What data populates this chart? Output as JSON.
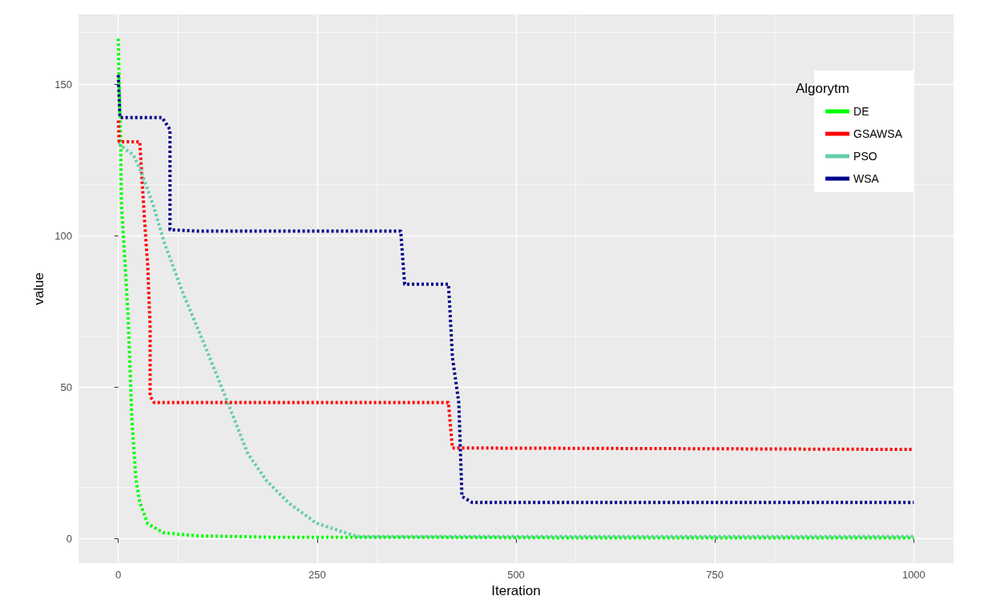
{
  "chart_data": {
    "type": "line",
    "xlabel": "Iteration",
    "ylabel": "value",
    "legend_title": "Algorytm",
    "xlim": [
      -50,
      1050
    ],
    "xticks": [
      0,
      250,
      500,
      750,
      1000
    ],
    "ylim": [
      -8,
      173
    ],
    "yticks": [
      0,
      50,
      100,
      150
    ],
    "grid": true,
    "legend": "top right",
    "line_style": "dotted",
    "marker": "none",
    "series": [
      {
        "name": "DE",
        "color": "#00ff00",
        "x": [
          0,
          1,
          2,
          3,
          4,
          8,
          12,
          15,
          17,
          20,
          22,
          27,
          37,
          57,
          100,
          200,
          400,
          600,
          1000
        ],
        "values": [
          165,
          150,
          140,
          130,
          110,
          93,
          75,
          55,
          40,
          28,
          20,
          12,
          5,
          2,
          1,
          0.5,
          0.5,
          0.3,
          0.3
        ]
      },
      {
        "name": "GSAWSA",
        "color": "#ff0000",
        "x": [
          0,
          1,
          27,
          30,
          33,
          37,
          40,
          40,
          45,
          415,
          420,
          1000
        ],
        "values": [
          138,
          131,
          131,
          118,
          105,
          90,
          70,
          47,
          45,
          45,
          30,
          29.5
        ]
      },
      {
        "name": "PSO",
        "color": "#66cdaa",
        "x": [
          0,
          2,
          19,
          29,
          44,
          58,
          82,
          110,
          136,
          163,
          187,
          215,
          249,
          300,
          1000
        ],
        "values": [
          130,
          130,
          126.6,
          121,
          110,
          97.6,
          80.6,
          63,
          46,
          28,
          19,
          11.7,
          5.2,
          0.8,
          0.8
        ]
      },
      {
        "name": "WSA",
        "color": "#00008b",
        "x": [
          0,
          2,
          55,
          65,
          65,
          100,
          355,
          360,
          415,
          417,
          420,
          428,
          430,
          432,
          445,
          1000
        ],
        "values": [
          153,
          139,
          139,
          135,
          102,
          101.5,
          101.5,
          84,
          84,
          75,
          60,
          45,
          30,
          14,
          12,
          12
        ]
      }
    ]
  }
}
